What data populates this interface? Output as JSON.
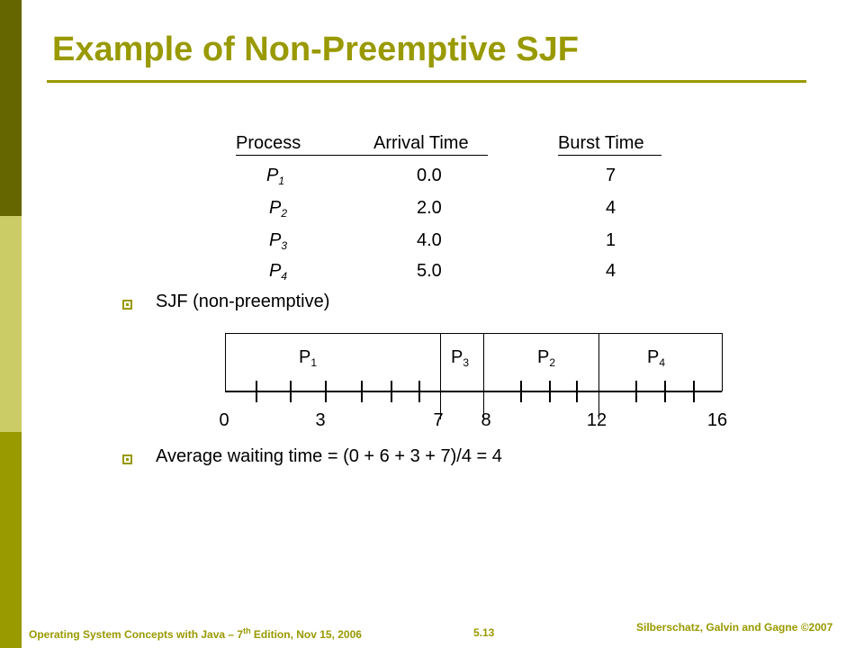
{
  "slide": {
    "title": "Example of Non-Preemptive SJF"
  },
  "table": {
    "headers": [
      "Process",
      "Arrival Time",
      "Burst Time"
    ],
    "rows": [
      {
        "p": "P",
        "sub": "1",
        "arrival": "0.0",
        "burst": "7"
      },
      {
        "p": "P",
        "sub": "2",
        "arrival": "2.0",
        "burst": "4"
      },
      {
        "p": "P",
        "sub": "3",
        "arrival": "4.0",
        "burst": "1"
      },
      {
        "p": "P",
        "sub": "4",
        "arrival": "5.0",
        "burst": "4"
      }
    ]
  },
  "bullets": {
    "first": "SJF (non-preemptive)",
    "second": "Average waiting time = (0 + 6 + 3 + 7)/4  = 4"
  },
  "gantt": {
    "segments": [
      {
        "p": "P",
        "sub": "1",
        "start": 0,
        "end": 7
      },
      {
        "p": "P",
        "sub": "3",
        "start": 7,
        "end": 8
      },
      {
        "p": "P",
        "sub": "2",
        "start": 8,
        "end": 12
      },
      {
        "p": "P",
        "sub": "4",
        "start": 12,
        "end": 16
      }
    ],
    "time_labels": [
      "0",
      "3",
      "7",
      "8",
      "12",
      "16"
    ]
  },
  "footer": {
    "left": "Operating System Concepts with Java – 7",
    "left_sup": "th",
    "left_tail": " Edition, Nov 15, 2006",
    "page": "5.13",
    "right": "Silberschatz, Galvin and Gagne ©2007"
  },
  "colors": {
    "accent": "#999900",
    "bar_dark": "#666600",
    "bar_light": "#cccc66"
  }
}
